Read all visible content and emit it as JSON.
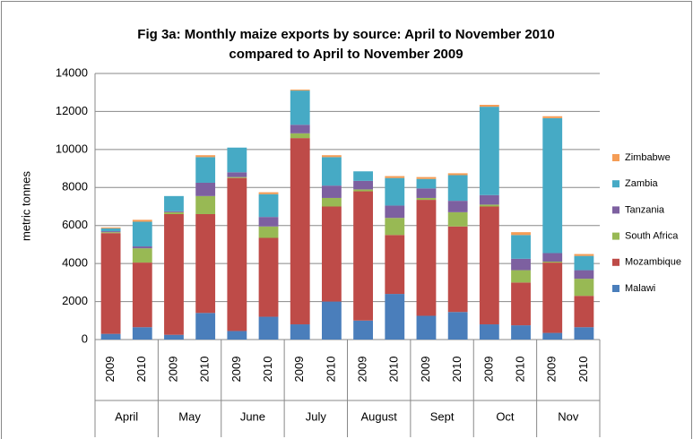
{
  "chart_data": {
    "type": "stacked-bar",
    "title": "Fig 3a: Monthly maize exports by source: April to November 2010 compared to April to November 2009",
    "ylabel": "metric tonnes",
    "categories": [
      "2009",
      "2010",
      "2009",
      "2010",
      "2009",
      "2010",
      "2009",
      "2010",
      "2009",
      "2010",
      "2009",
      "2010",
      "2009",
      "2010",
      "2009",
      "2010"
    ],
    "groups": [
      "April",
      "May",
      "June",
      "July",
      "August",
      "Sept",
      "Oct",
      "Nov"
    ],
    "series": [
      {
        "name": "Malawi",
        "color": "#4a7ebb",
        "values": [
          300,
          650,
          250,
          1400,
          450,
          1200,
          800,
          2000,
          1000,
          2400,
          1250,
          1450,
          800,
          750,
          350,
          650
        ]
      },
      {
        "name": "Mozambique",
        "color": "#be4b48",
        "values": [
          5300,
          3400,
          6350,
          5200,
          8050,
          4150,
          9800,
          5000,
          6800,
          3100,
          6100,
          4500,
          6200,
          2250,
          3700,
          1650
        ]
      },
      {
        "name": "South Africa",
        "color": "#98b954",
        "values": [
          50,
          750,
          100,
          950,
          50,
          600,
          250,
          450,
          100,
          900,
          100,
          750,
          100,
          650,
          50,
          900
        ]
      },
      {
        "name": "Tanzania",
        "color": "#7d60a0",
        "values": [
          50,
          100,
          50,
          700,
          250,
          500,
          450,
          650,
          450,
          650,
          500,
          600,
          500,
          600,
          450,
          450
        ]
      },
      {
        "name": "Zambia",
        "color": "#46aac5",
        "values": [
          150,
          1300,
          800,
          1350,
          1300,
          1200,
          1800,
          1500,
          500,
          1450,
          500,
          1350,
          4650,
          1250,
          7100,
          750
        ]
      },
      {
        "name": "Zimbabwe",
        "color": "#f59d56",
        "values": [
          50,
          100,
          0,
          100,
          0,
          100,
          50,
          100,
          0,
          100,
          100,
          100,
          100,
          150,
          100,
          100
        ]
      }
    ],
    "ylim": [
      0,
      14000
    ],
    "yticks": [
      0,
      2000,
      4000,
      6000,
      8000,
      10000,
      12000,
      14000
    ],
    "grid": true,
    "legend": "right"
  }
}
